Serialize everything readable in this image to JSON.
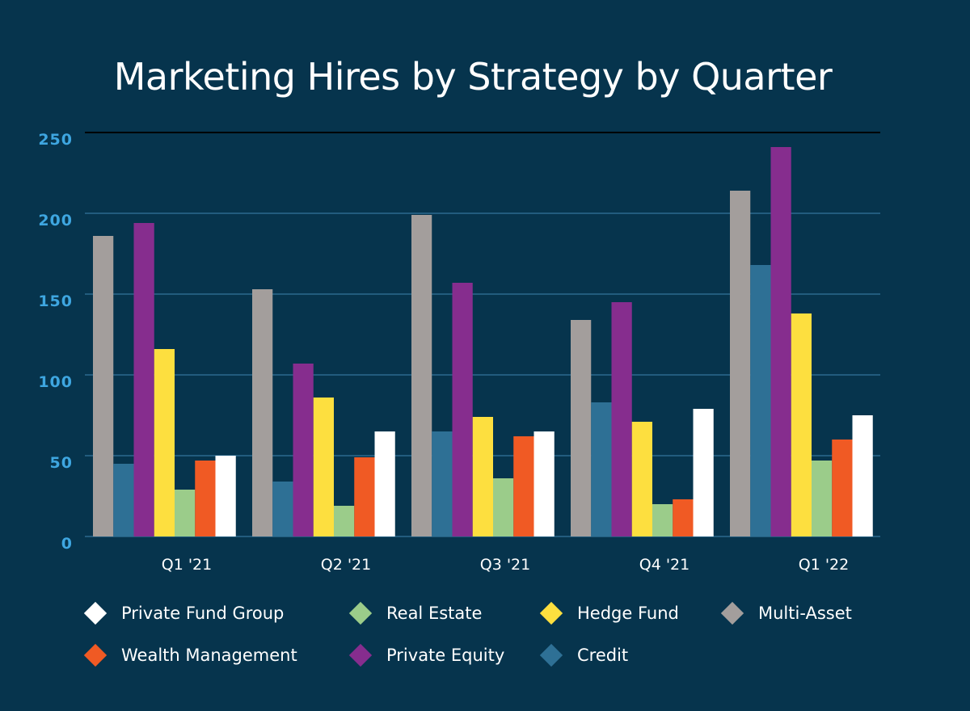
{
  "chart_data": {
    "type": "bar",
    "title": "Marketing Hires by Strategy by Quarter",
    "xlabel": "",
    "ylabel": "",
    "ylim": [
      0,
      250
    ],
    "yticks": [
      "0",
      "50",
      "100",
      "150",
      "200",
      "250"
    ],
    "ytick_values": [
      0,
      50,
      100,
      150,
      200,
      250
    ],
    "grid": true,
    "legend_position": "bottom",
    "categories": [
      "Q1 '21",
      "Q2 '21",
      "Q3 '21",
      "Q4 '21",
      "Q1 '22"
    ],
    "series": [
      {
        "name": "Multi-Asset",
        "color": "#a39e9c",
        "values": [
          186,
          153,
          199,
          134,
          214
        ]
      },
      {
        "name": "Credit",
        "color": "#2e7095",
        "values": [
          45,
          34,
          65,
          83,
          168
        ]
      },
      {
        "name": "Private Equity",
        "color": "#862d8e",
        "values": [
          194,
          107,
          157,
          145,
          241
        ]
      },
      {
        "name": "Hedge Fund",
        "color": "#fddf3f",
        "values": [
          116,
          86,
          74,
          71,
          138
        ]
      },
      {
        "name": "Real Estate",
        "color": "#9bcc8a",
        "values": [
          29,
          19,
          36,
          20,
          47
        ]
      },
      {
        "name": "Wealth Management",
        "color": "#f05a24",
        "values": [
          47,
          49,
          62,
          23,
          60
        ]
      },
      {
        "name": "Private Fund Group",
        "color": "#ffffff",
        "values": [
          50,
          65,
          65,
          79,
          75
        ]
      }
    ],
    "legend": [
      {
        "name": "Private Fund Group",
        "color": "#ffffff"
      },
      {
        "name": "Real Estate",
        "color": "#9bcc8a"
      },
      {
        "name": "Hedge Fund",
        "color": "#fddf3f"
      },
      {
        "name": "Multi-Asset",
        "color": "#a39e9c"
      },
      {
        "name": "Wealth Management",
        "color": "#f05a24"
      },
      {
        "name": "Private Equity",
        "color": "#862d8e"
      },
      {
        "name": "Credit",
        "color": "#2e7095"
      }
    ]
  },
  "colors": {
    "background": "#06344d",
    "gridline": "#2b6a8f",
    "top_line": "#000000",
    "ytick": "#3ea6e0",
    "text": "#ffffff"
  }
}
